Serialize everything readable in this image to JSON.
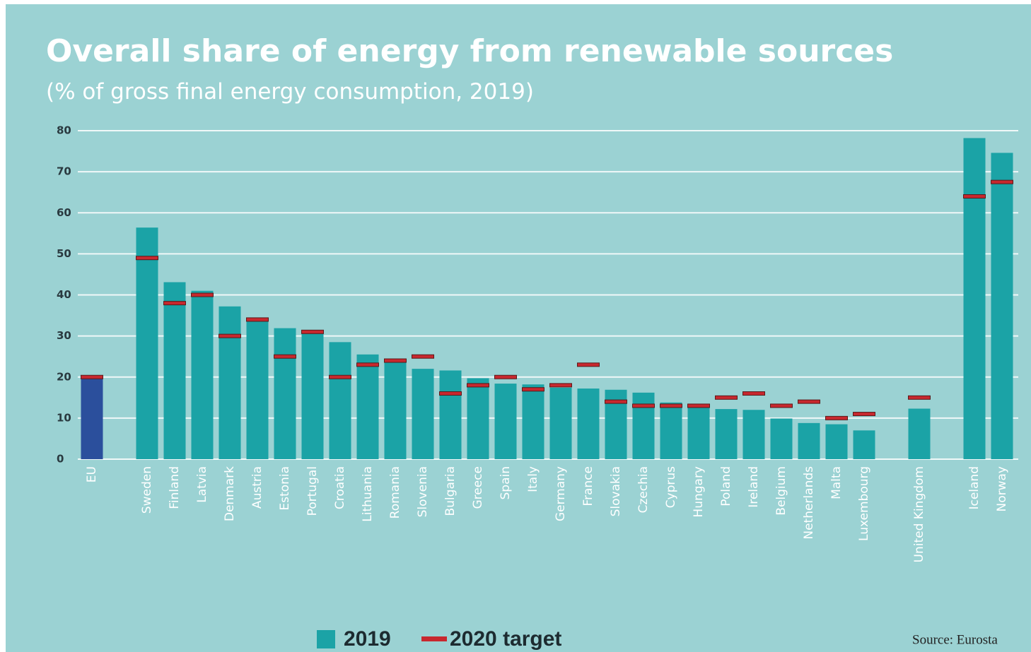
{
  "chart_data": {
    "type": "bar",
    "title": "Overall share of energy from renewable sources",
    "subtitle": "(% of gross final energy consumption, 2019)",
    "source": "Source: Eurosta",
    "categories": [
      "EU",
      null,
      "Sweden",
      "Finland",
      "Latvia",
      "Denmark",
      "Austria",
      "Estonia",
      "Portugal",
      "Croatia",
      "Lithuania",
      "Romania",
      "Slovenia",
      "Bulgaria",
      "Greece",
      "Spain",
      "Italy",
      "Germany",
      "France",
      "Slovakia",
      "Czechia",
      "Cyprus",
      "Hungary",
      "Poland",
      "Ireland",
      "Belgium",
      "Netherlands",
      "Malta",
      "Luxembourg",
      null,
      "United Kingdom",
      null,
      "Iceland",
      "Norway"
    ],
    "series": [
      {
        "name": "2019",
        "color": "#1ba3a6",
        "mark": "bar",
        "colors": [
          "#2b4f9c",
          null,
          "#1ba3a6",
          "#1ba3a6",
          "#1ba3a6",
          "#1ba3a6",
          "#1ba3a6",
          "#1ba3a6",
          "#1ba3a6",
          "#1ba3a6",
          "#1ba3a6",
          "#1ba3a6",
          "#1ba3a6",
          "#1ba3a6",
          "#1ba3a6",
          "#1ba3a6",
          "#1ba3a6",
          "#1ba3a6",
          "#1ba3a6",
          "#1ba3a6",
          "#1ba3a6",
          "#1ba3a6",
          "#1ba3a6",
          "#1ba3a6",
          "#1ba3a6",
          "#1ba3a6",
          "#1ba3a6",
          "#1ba3a6",
          "#1ba3a6",
          null,
          "#1ba3a6",
          null,
          "#1ba3a6",
          "#1ba3a6"
        ],
        "values": [
          19.7,
          null,
          56.4,
          43.1,
          41.0,
          37.2,
          33.6,
          31.9,
          30.6,
          28.5,
          25.5,
          24.3,
          22.0,
          21.6,
          19.7,
          18.4,
          18.2,
          17.4,
          17.2,
          16.9,
          16.2,
          13.8,
          12.6,
          12.2,
          12.0,
          9.9,
          8.8,
          8.5,
          7.0,
          null,
          12.3,
          null,
          78.2,
          74.6
        ]
      },
      {
        "name": "2020 target",
        "color": "#c8282e",
        "mark": "dash",
        "values": [
          20,
          null,
          49,
          38,
          40,
          30,
          34,
          25,
          31,
          20,
          23,
          24,
          25,
          16,
          18,
          20,
          17,
          18,
          23,
          14,
          13,
          13,
          13,
          15,
          16,
          13,
          14,
          10,
          11,
          null,
          15,
          null,
          64,
          67.5
        ]
      }
    ],
    "ylim": [
      0,
      80
    ],
    "yticks": [
      0,
      10,
      20,
      30,
      40,
      50,
      60,
      70,
      80
    ],
    "grid": true
  }
}
